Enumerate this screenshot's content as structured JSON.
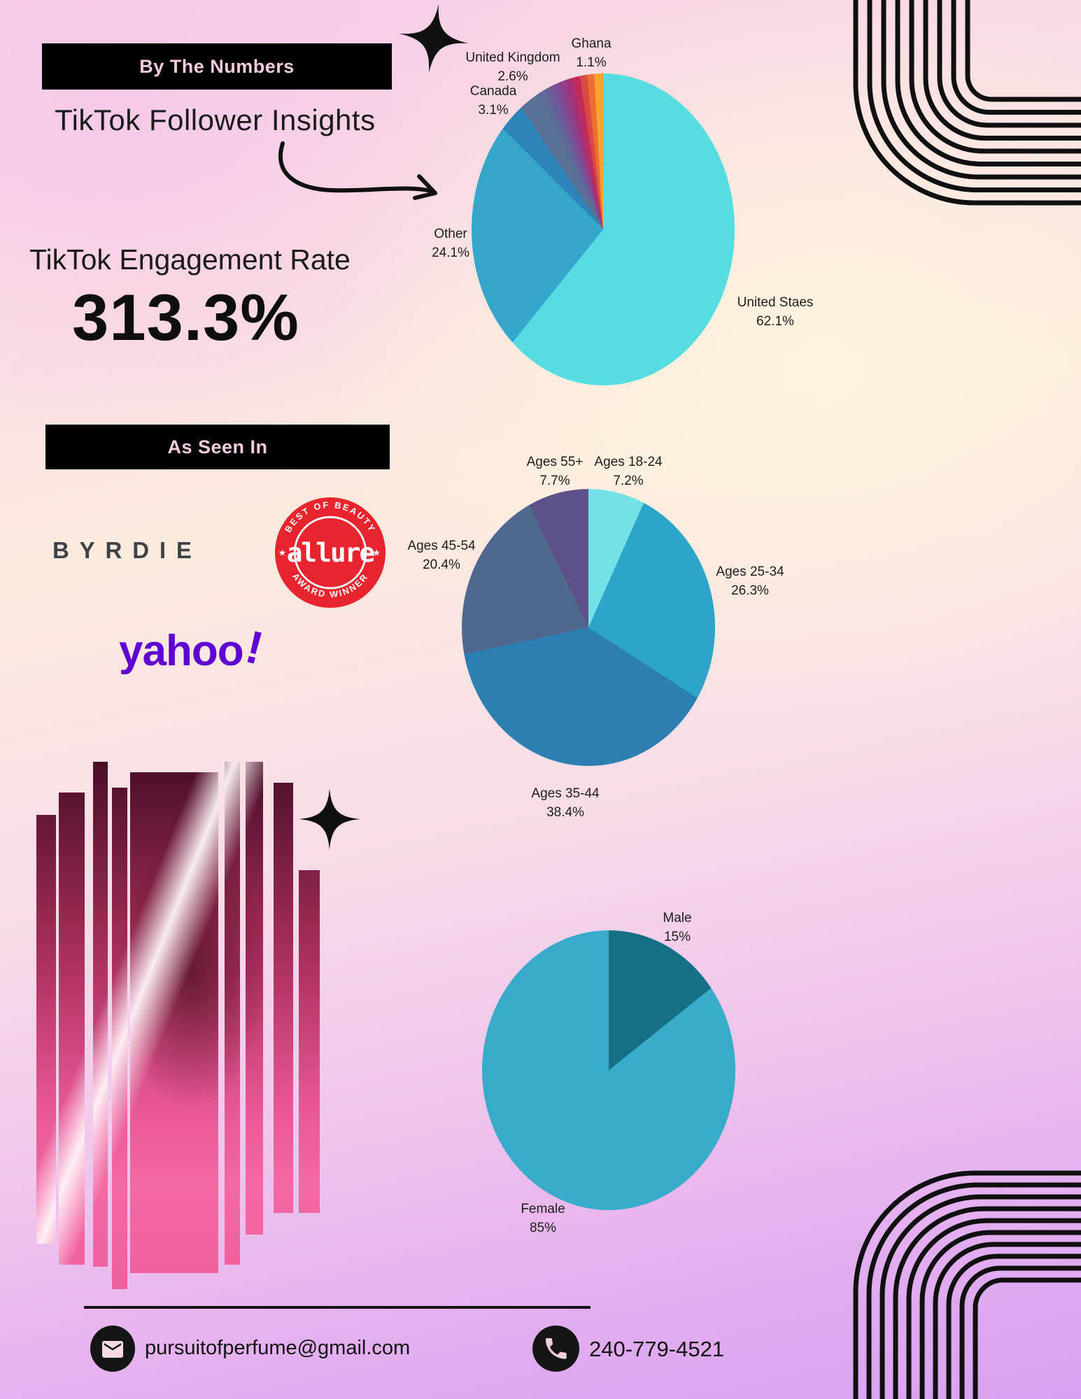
{
  "header": {
    "banner": "By The Numbers",
    "title": "TikTok Follower Insights"
  },
  "engagement": {
    "label": "TikTok Engagement Rate",
    "value": "313.3%"
  },
  "as_seen_in": {
    "banner": "As Seen In",
    "byrdie": "BYRDIE",
    "allure": {
      "word": "allure",
      "arc_top": "BEST OF BEAUTY",
      "arc_bottom": "AWARD WINNER",
      "star_left": "★",
      "star_right": "★"
    },
    "yahoo": {
      "word": "yahoo",
      "bang": "!"
    }
  },
  "footer": {
    "email": "pursuitofperfume@gmail.com",
    "phone": "240-779-4521"
  },
  "colors": {
    "banner_bg": "#000000",
    "banner_text": "#f3cade",
    "allure_red": "#e8252e",
    "yahoo_purple": "#5f01d1",
    "ink": "#101010"
  },
  "chart_data": [
    {
      "type": "pie",
      "name": "tiktok-followers-by-country",
      "legend_position": "outside-labels",
      "slices": [
        {
          "label": "United Staes",
          "pct": "62.1%",
          "value": 62.1,
          "color": "#56dde1"
        },
        {
          "label": "Other",
          "pct": "24.1%",
          "value": 24.1,
          "color": "#36a6cb"
        },
        {
          "label": "Canada",
          "pct": "3.1%",
          "value": 3.1,
          "color": "#2e85b9"
        },
        {
          "label": "United Kingdom",
          "pct": "2.6%",
          "value": 2.6,
          "color": "#5a7196"
        },
        {
          "label": "",
          "pct": "",
          "value": 0.875,
          "color": "#5e6b99"
        },
        {
          "label": "",
          "pct": "",
          "value": 0.875,
          "color": "#6a5d98"
        },
        {
          "label": "",
          "pct": "",
          "value": 0.875,
          "color": "#7a4f95"
        },
        {
          "label": "",
          "pct": "",
          "value": 0.875,
          "color": "#8e4089"
        },
        {
          "label": "",
          "pct": "",
          "value": 0.875,
          "color": "#a53177"
        },
        {
          "label": "",
          "pct": "",
          "value": 0.875,
          "color": "#c12b5c"
        },
        {
          "label": "",
          "pct": "",
          "value": 0.875,
          "color": "#d94a45"
        },
        {
          "label": "",
          "pct": "",
          "value": 0.875,
          "color": "#ec6f31"
        },
        {
          "label": "Ghana",
          "pct": "1.1%",
          "value": 1.1,
          "color": "#f9a232"
        }
      ]
    },
    {
      "type": "pie",
      "name": "tiktok-followers-by-age",
      "legend_position": "outside-labels",
      "slices": [
        {
          "label": "Ages 18-24",
          "pct": "7.2%",
          "value": 7.2,
          "color": "#73e1e5"
        },
        {
          "label": "Ages 25-34",
          "pct": "26.3%",
          "value": 26.3,
          "color": "#2da5c9"
        },
        {
          "label": "Ages 35-44",
          "pct": "38.4%",
          "value": 38.4,
          "color": "#2b7fb1"
        },
        {
          "label": "Ages 45-54",
          "pct": "20.4%",
          "value": 20.4,
          "color": "#4e6890"
        },
        {
          "label": "Ages 55+",
          "pct": "7.7%",
          "value": 7.7,
          "color": "#5e5189"
        }
      ]
    },
    {
      "type": "pie",
      "name": "tiktok-followers-by-gender",
      "legend_position": "outside-labels",
      "slices": [
        {
          "label": "Male",
          "pct": "15%",
          "value": 15,
          "color": "#156f85"
        },
        {
          "label": "Female",
          "pct": "85%",
          "value": 85,
          "color": "#38abca"
        }
      ]
    }
  ]
}
